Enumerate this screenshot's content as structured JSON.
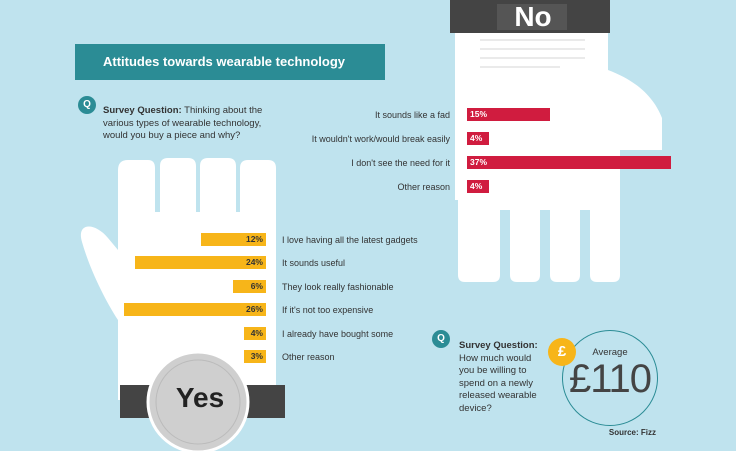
{
  "title": "Attitudes towards wearable technology",
  "question1": {
    "badge": "Q",
    "heading": "Survey Question:",
    "text": "Thinking about the various types of wearable technology, would you buy a piece and why?"
  },
  "question2": {
    "badge": "Q",
    "heading": "Survey Question:",
    "text": "How much would you be willing to spend on a newly released wearable device?"
  },
  "average": {
    "label": "Average",
    "value": "£110",
    "currency_badge": "£"
  },
  "source": "Source: Fizz",
  "no_label": "No",
  "yes_label": "Yes",
  "colors": {
    "no": "#d01c3f",
    "yes": "#f7b519",
    "teal": "#2b8c95",
    "background": "#bfe3ee"
  },
  "chart_data": [
    {
      "type": "bar",
      "name": "No",
      "categories": [
        "It sounds like a fad",
        "It wouldn't work/would break easily",
        "I don't see the need for it",
        "Other reason"
      ],
      "values": [
        15,
        4,
        37,
        4
      ],
      "value_labels": [
        "15%",
        "4%",
        "37%",
        "4%"
      ],
      "unit": "%"
    },
    {
      "type": "bar",
      "name": "Yes",
      "categories": [
        "I love having all the latest gadgets",
        "It sounds useful",
        "They look really fashionable",
        "If it's not too expensive",
        "I already have bought some",
        "Other reason"
      ],
      "values": [
        12,
        24,
        6,
        26,
        4,
        3
      ],
      "value_labels": [
        "12%",
        "24%",
        "6%",
        "26%",
        "4%",
        "3%"
      ],
      "unit": "%"
    }
  ]
}
